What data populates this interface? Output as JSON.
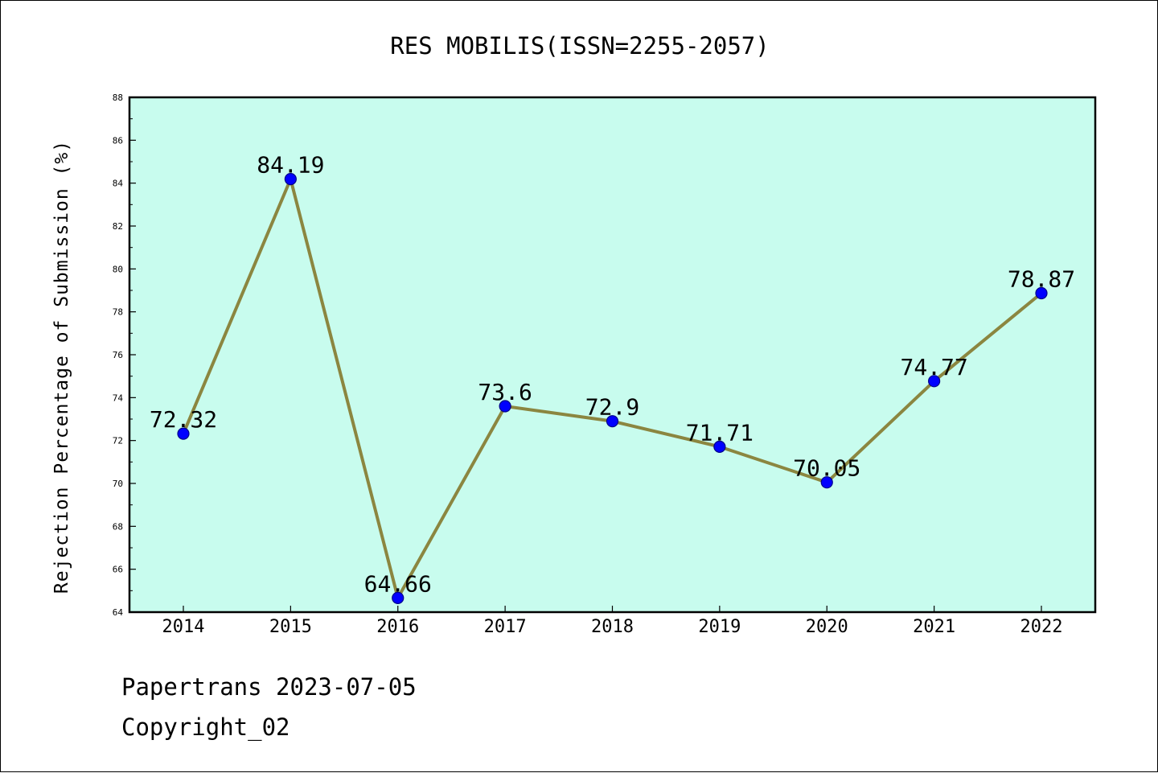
{
  "chart_data": {
    "type": "line",
    "title": "RES MOBILIS(ISSN=2255-2057)",
    "xlabel": "",
    "ylabel": "Rejection Percentage of Submission (%)",
    "categories": [
      "2014",
      "2015",
      "2016",
      "2017",
      "2018",
      "2019",
      "2020",
      "2021",
      "2022"
    ],
    "values": [
      72.32,
      84.19,
      64.66,
      73.6,
      72.9,
      71.71,
      70.05,
      74.77,
      78.87
    ],
    "data_labels": [
      "72.32",
      "84.19",
      "64.66",
      "73.6",
      "72.9",
      "71.71",
      "70.05",
      "74.77",
      "78.87"
    ],
    "ylim": [
      64,
      88
    ],
    "yticks": [
      64,
      66,
      68,
      70,
      72,
      74,
      76,
      78,
      80,
      82,
      84,
      86,
      88
    ],
    "grid": false,
    "colors": {
      "plot_background": "#c8fcee",
      "line": "#8b8640",
      "marker": "#0000ff"
    }
  },
  "footer": {
    "line1": "Papertrans 2023-07-05",
    "line2": "Copyright_02"
  }
}
